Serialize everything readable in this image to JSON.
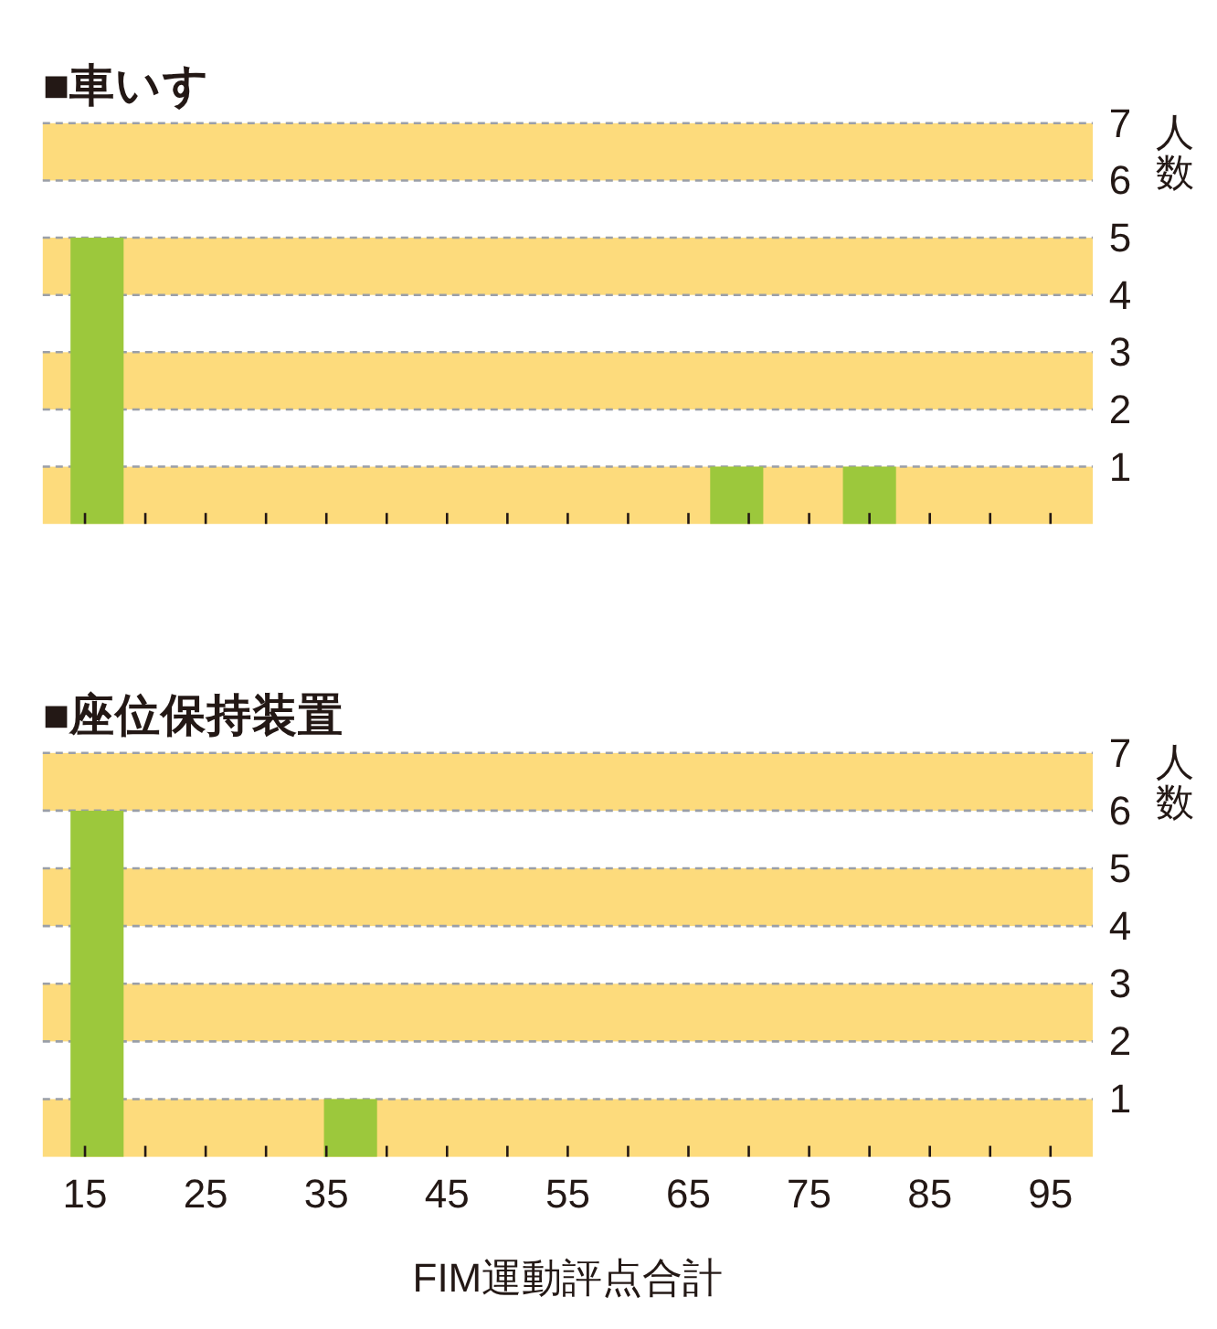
{
  "chart_data": [
    {
      "type": "bar",
      "title": "■車いす",
      "ylabel": "人数",
      "x": [
        16,
        69,
        80
      ],
      "values": [
        5,
        1,
        1
      ],
      "color": "#9cc83c",
      "xlim": [
        11.5,
        98.5
      ],
      "xticks": [
        15,
        {
          "value": 20,
          "label": null
        },
        25,
        {
          "value": 30,
          "label": null
        },
        35,
        {
          "value": 40,
          "label": null
        },
        45,
        {
          "value": 50,
          "label": null
        },
        55,
        {
          "value": 60,
          "label": null
        },
        65,
        {
          "value": 70,
          "label": null
        },
        75,
        {
          "value": 80,
          "label": null
        },
        85,
        {
          "value": 90,
          "label": null
        },
        95
      ],
      "ylim": [
        0,
        7
      ],
      "yticks": [
        1,
        2,
        3,
        4,
        5,
        6,
        7
      ],
      "grid": "y",
      "tick_labels": "y",
      "bands": [
        {
          "axis": "y",
          "from": 0,
          "to": 1,
          "color": "#fddb7c"
        },
        {
          "axis": "y",
          "from": 2,
          "to": 3,
          "color": "#fddb7c"
        },
        {
          "axis": "y",
          "from": 4,
          "to": 5,
          "color": "#fddb7c"
        },
        {
          "axis": "y",
          "from": 6,
          "to": 7,
          "color": "#fddb7c"
        }
      ]
    },
    {
      "type": "bar",
      "title": "■座位保持装置",
      "xlabel": "FIM運動評点合計",
      "ylabel": "人数",
      "x": [
        16,
        37
      ],
      "values": [
        6,
        1
      ],
      "color": "#9cc83c",
      "xlim": [
        11.5,
        98.5
      ],
      "xticks": [
        15,
        {
          "value": 20,
          "label": null
        },
        25,
        {
          "value": 30,
          "label": null
        },
        35,
        {
          "value": 40,
          "label": null
        },
        45,
        {
          "value": 50,
          "label": null
        },
        55,
        {
          "value": 60,
          "label": null
        },
        65,
        {
          "value": 70,
          "label": null
        },
        75,
        {
          "value": 80,
          "label": null
        },
        85,
        {
          "value": 90,
          "label": null
        },
        95
      ],
      "ylim": [
        0,
        7
      ],
      "yticks": [
        1,
        2,
        3,
        4,
        5,
        6,
        7
      ],
      "grid": "y",
      "bands": [
        {
          "axis": "y",
          "from": 0,
          "to": 1,
          "color": "#fddb7c"
        },
        {
          "axis": "y",
          "from": 2,
          "to": 3,
          "color": "#fddb7c"
        },
        {
          "axis": "y",
          "from": 4,
          "to": 5,
          "color": "#fddb7c"
        },
        {
          "axis": "y",
          "from": 6,
          "to": 7,
          "color": "#fddb7c"
        }
      ]
    }
  ]
}
